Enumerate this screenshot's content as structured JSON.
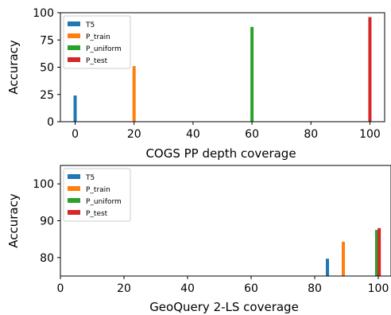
{
  "chart_data": [
    {
      "type": "bar",
      "xlabel": "COGS PP depth coverage",
      "ylabel": "Accuracy",
      "xlim": [
        -5,
        105
      ],
      "ylim": [
        0,
        100
      ],
      "xticks": [
        0,
        20,
        40,
        60,
        80,
        100
      ],
      "yticks": [
        0,
        25,
        50,
        75,
        100
      ],
      "grid": false,
      "legend_position": "top-left",
      "series": [
        {
          "name": "T5",
          "color": "#1f77b4",
          "x": [
            0
          ],
          "values": [
            24
          ]
        },
        {
          "name": "P_train",
          "color": "#ff7f0e",
          "x": [
            20
          ],
          "values": [
            51
          ]
        },
        {
          "name": "P_uniform",
          "color": "#2ca02c",
          "x": [
            60
          ],
          "values": [
            87
          ]
        },
        {
          "name": "P_test",
          "color": "#d62728",
          "x": [
            100
          ],
          "values": [
            96
          ]
        }
      ]
    },
    {
      "type": "bar",
      "xlabel": "GeoQuery 2-LS coverage",
      "ylabel": "Accuracy",
      "xlim": [
        0,
        104
      ],
      "ylim": [
        75,
        105
      ],
      "xticks": [
        0,
        20,
        40,
        60,
        80,
        100
      ],
      "yticks": [
        80,
        90,
        100
      ],
      "grid": false,
      "legend_position": "top-left",
      "series": [
        {
          "name": "T5",
          "color": "#1f77b4",
          "x": [
            84
          ],
          "values": [
            79.7
          ]
        },
        {
          "name": "P_train",
          "color": "#ff7f0e",
          "x": [
            89
          ],
          "values": [
            84.3
          ]
        },
        {
          "name": "P_uniform",
          "color": "#2ca02c",
          "x": [
            99.5
          ],
          "values": [
            87.5
          ]
        },
        {
          "name": "P_test",
          "color": "#d62728",
          "x": [
            100.3
          ],
          "values": [
            88
          ]
        }
      ]
    }
  ]
}
